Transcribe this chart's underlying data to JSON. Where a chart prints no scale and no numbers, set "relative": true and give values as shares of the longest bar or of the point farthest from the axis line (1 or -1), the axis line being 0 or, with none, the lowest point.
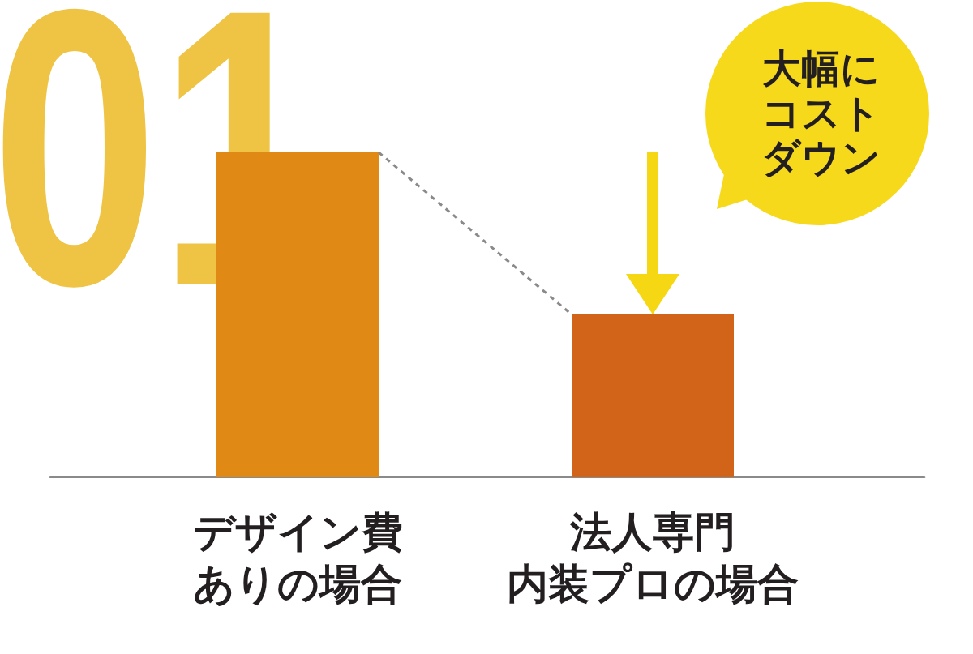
{
  "chart_data": {
    "type": "bar",
    "categories": [
      "デザイン費ありの場合",
      "法人専門内装プロの場合"
    ],
    "values": [
      1,
      0.5
    ],
    "colors": [
      "#e08914",
      "#d2641a"
    ],
    "relative": true,
    "annotations": [
      "01",
      "大幅にコストダウン"
    ]
  }
}
